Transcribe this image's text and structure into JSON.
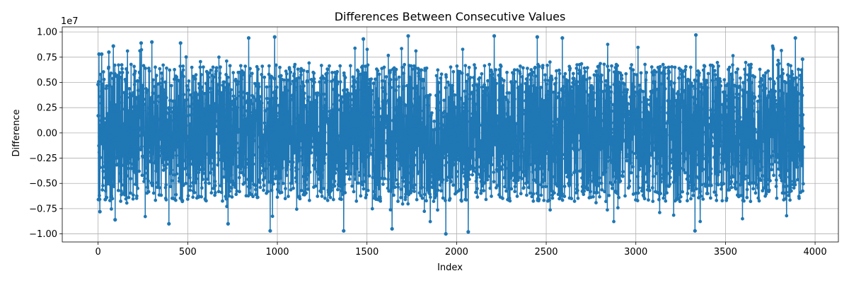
{
  "chart_data": {
    "type": "line",
    "title": "Differences Between Consecutive Values",
    "xlabel": "Index",
    "ylabel": "Difference",
    "y_scale_label": "1e7",
    "xlim": [
      -200,
      4130
    ],
    "ylim": [
      -10800000,
      10500000
    ],
    "xticks": [
      0,
      500,
      1000,
      1500,
      2000,
      2500,
      3000,
      3500,
      4000
    ],
    "xtick_labels": [
      "0",
      "500",
      "1000",
      "1500",
      "2000",
      "2500",
      "3000",
      "3500",
      "4000"
    ],
    "yticks": [
      -10000000,
      -7500000,
      -5000000,
      -2500000,
      0,
      2500000,
      5000000,
      7500000,
      10000000
    ],
    "ytick_labels": [
      "−1.00",
      "−0.75",
      "−0.50",
      "−0.25",
      "0.00",
      "0.25",
      "0.50",
      "0.75",
      "1.00"
    ],
    "grid": true,
    "marker": "circle",
    "series_color": "#1f77b4",
    "series": [
      {
        "points": 3936,
        "x_start": 0,
        "x_end": 3935,
        "y_min": -10000000,
        "y_max": 9700000,
        "sample": [
          [
            0,
            4800000
          ],
          [
            1,
            1700000
          ],
          [
            2,
            -6600000
          ],
          [
            5,
            7800000
          ],
          [
            10,
            -7800000
          ],
          [
            20,
            7800000
          ],
          [
            40,
            -6600000
          ],
          [
            60,
            8000000
          ],
          [
            85,
            8600000
          ],
          [
            95,
            -8600000
          ],
          [
            240,
            8900000
          ],
          [
            300,
            9000000
          ],
          [
            395,
            -9000000
          ],
          [
            460,
            8900000
          ],
          [
            725,
            -9000000
          ],
          [
            840,
            9400000
          ],
          [
            960,
            -9700000
          ],
          [
            985,
            9500000
          ],
          [
            1370,
            -9700000
          ],
          [
            1480,
            9300000
          ],
          [
            1640,
            -9500000
          ],
          [
            1730,
            9600000
          ],
          [
            1940,
            -10000000
          ],
          [
            2065,
            -9800000
          ],
          [
            2210,
            9600000
          ],
          [
            2450,
            9500000
          ],
          [
            2590,
            9400000
          ],
          [
            3330,
            -9700000
          ],
          [
            3335,
            9700000
          ],
          [
            3890,
            9400000
          ],
          [
            3930,
            7300000
          ],
          [
            3935,
            -1400000
          ]
        ]
      }
    ]
  }
}
